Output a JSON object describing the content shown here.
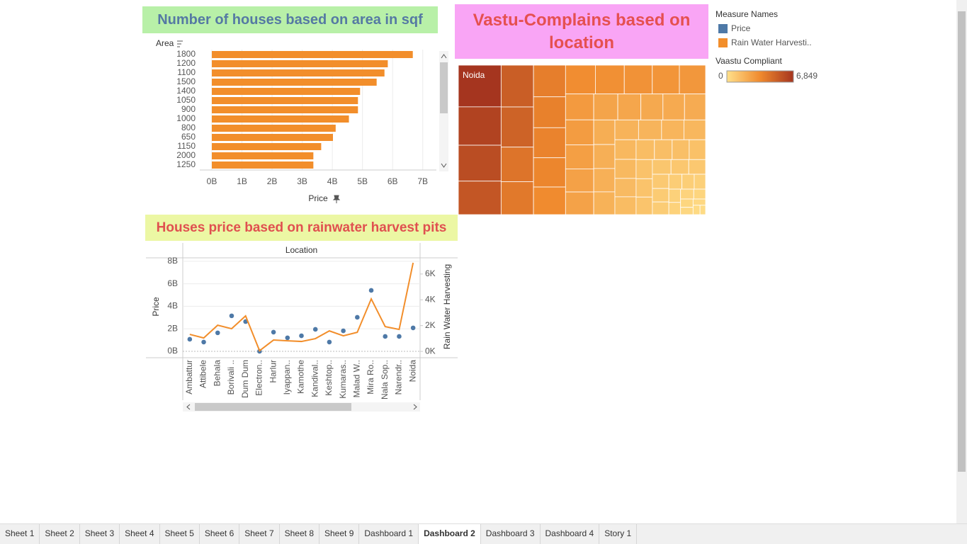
{
  "chart_data": [
    {
      "type": "bar",
      "orientation": "horizontal",
      "title": "Number of houses based on area in sqf",
      "ylabel": "Area",
      "xlabel": "Price",
      "categories": [
        "1800",
        "1200",
        "1100",
        "1500",
        "1400",
        "1050",
        "900",
        "1000",
        "800",
        "650",
        "1150",
        "2000",
        "1250"
      ],
      "values": [
        6.67,
        5.84,
        5.73,
        5.47,
        4.92,
        4.85,
        4.85,
        4.55,
        4.11,
        4.02,
        3.63,
        3.37,
        3.37
      ],
      "color": "#f28e2b",
      "xlim": [
        -0.4,
        7.5
      ],
      "xticks": [
        {
          "value": 0,
          "label": "0B"
        },
        {
          "value": 1,
          "label": "1B"
        },
        {
          "value": 2,
          "label": "2B"
        },
        {
          "value": 3,
          "label": "3B"
        },
        {
          "value": 4,
          "label": "4B"
        },
        {
          "value": 5,
          "label": "5B"
        },
        {
          "value": 6,
          "label": "6B"
        },
        {
          "value": 7,
          "label": "7B"
        }
      ],
      "grid": true
    },
    {
      "type": "treemap",
      "title": "Vastu-Complains based on location",
      "categories": [
        "Noida",
        null,
        null,
        null,
        null,
        null,
        null,
        null,
        null,
        null,
        null,
        null,
        null,
        null,
        null,
        null,
        null,
        null,
        null,
        null,
        null,
        null,
        null,
        null,
        null,
        null,
        null,
        null,
        null,
        null,
        null,
        null,
        null,
        null,
        null,
        null,
        null,
        null,
        null,
        null,
        null,
        null,
        null,
        null,
        null,
        null,
        null,
        null,
        null,
        null,
        null,
        null,
        null,
        null,
        null,
        null,
        null,
        null,
        null,
        null,
        null,
        null,
        null,
        null,
        null
      ],
      "values": [
        6849,
        6300,
        5900,
        5500,
        5200,
        5000,
        4300,
        4100,
        3900,
        3800,
        3700,
        3600,
        3400,
        3300,
        3200,
        3100,
        3000,
        2900,
        2800,
        2700,
        2600,
        2500,
        2450,
        2400,
        2300,
        2200,
        2150,
        2100,
        2000,
        1950,
        1900,
        1850,
        1800,
        1750,
        1700,
        1650,
        1600,
        1550,
        1500,
        1450,
        1400,
        1350,
        1300,
        1250,
        1200,
        1150,
        1100,
        1050,
        1000,
        950,
        900,
        850,
        800,
        750,
        700,
        650,
        600,
        550,
        500,
        450,
        400,
        350,
        300,
        250,
        200
      ],
      "color_title": "Vaastu Compliant",
      "colorlim": [
        0,
        6849
      ],
      "colorticks": [
        0,
        {
          "value": 6849,
          "label": "6,849"
        }
      ],
      "colorscale": [
        "#ffe08a",
        "#f08a2e",
        "#a5351f"
      ]
    },
    {
      "type": "combo",
      "title": "Houses price based on rainwater harvest pits",
      "xlabel": "Location",
      "ylabel": "Price",
      "y2label": "Rain Water Harvesting",
      "legend_title": "Measure Names",
      "categories": [
        "Ambattur",
        "Attibele",
        "Behala",
        "Borivali ..",
        "Dum Dum",
        "Electron..",
        "Harlur",
        "Iyappan..",
        "Kamothe",
        "Kandival..",
        "Keshtop..",
        "Kumaras..",
        "Malad W..",
        "Mira Ro..",
        "Nala Sop..",
        "Narendr..",
        "Noida"
      ],
      "series": [
        {
          "name": "Price",
          "color": "#4e79a7",
          "kind": "scatter",
          "values": [
            1.07,
            0.82,
            1.64,
            3.15,
            2.64,
            0,
            1.7,
            1.2,
            1.38,
            1.95,
            0.82,
            1.82,
            3.02,
            5.41,
            1.32,
            1.32,
            2.08
          ]
        },
        {
          "name": "Rain Water Harvesti..",
          "color": "#f28e2b",
          "kind": "line",
          "axis": "y2",
          "values": [
            1.32,
            1.04,
            2.03,
            1.76,
            2.75,
            0.05,
            0.88,
            0.82,
            0.77,
            0.99,
            1.59,
            1.21,
            1.48,
            4.07,
            1.92,
            1.7,
            6.87
          ]
        }
      ],
      "ylim": [
        -0.57,
        8.24
      ],
      "yticks": [
        {
          "value": 0,
          "label": "0B"
        },
        {
          "value": 2,
          "label": "2B"
        },
        {
          "value": 4,
          "label": "4B"
        },
        {
          "value": 6,
          "label": "6B"
        },
        {
          "value": 8,
          "label": "8B"
        }
      ],
      "y2lim": [
        -0.49,
        7.2
      ],
      "y2ticks": [
        {
          "value": 0,
          "label": "0K"
        },
        {
          "value": 2,
          "label": "2K"
        },
        {
          "value": 4,
          "label": "4K"
        },
        {
          "value": 6,
          "label": "6K"
        }
      ],
      "grid": true
    }
  ],
  "tabs": [
    "Sheet 1",
    "Sheet 2",
    "Sheet 3",
    "Sheet 4",
    "Sheet 5",
    "Sheet 6",
    "Sheet 7",
    "Sheet 8",
    "Sheet 9",
    "Dashboard 1",
    "Dashboard 2",
    "Dashboard 3",
    "Dashboard 4",
    "Story 1"
  ],
  "active_tab": 10
}
